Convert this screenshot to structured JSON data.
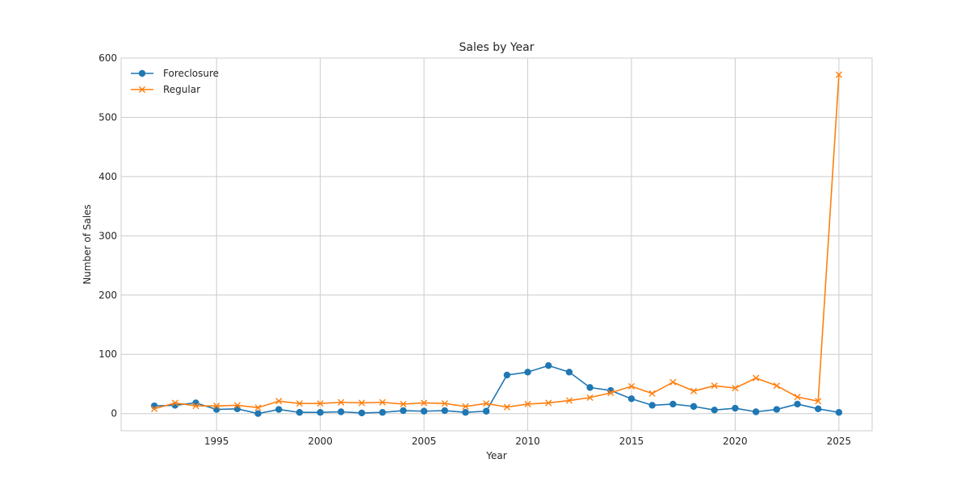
{
  "chart_data": {
    "type": "line",
    "title": "Sales by Year",
    "xlabel": "Year",
    "ylabel": "Number of Sales",
    "xlim": [
      1990.4,
      2026.6
    ],
    "ylim": [
      -29,
      600
    ],
    "xticks": [
      1995,
      2000,
      2005,
      2010,
      2015,
      2020,
      2025
    ],
    "yticks": [
      0,
      100,
      200,
      300,
      400,
      500,
      600
    ],
    "grid": true,
    "legend_position": "top-left",
    "x": [
      1992,
      1993,
      1994,
      1995,
      1996,
      1997,
      1998,
      1999,
      2000,
      2001,
      2002,
      2003,
      2004,
      2005,
      2006,
      2007,
      2008,
      2009,
      2010,
      2011,
      2012,
      2013,
      2014,
      2015,
      2016,
      2017,
      2018,
      2019,
      2020,
      2021,
      2022,
      2023,
      2024,
      2025
    ],
    "series": [
      {
        "name": "Foreclosure",
        "color": "#1f77b4",
        "marker": "circle",
        "values": [
          13,
          14,
          18,
          7,
          8,
          0,
          7,
          2,
          2,
          3,
          1,
          2,
          5,
          4,
          5,
          2,
          4,
          65,
          70,
          81,
          70,
          44,
          39,
          25,
          14,
          16,
          12,
          6,
          9,
          3,
          7,
          16,
          8,
          2
        ]
      },
      {
        "name": "Regular",
        "color": "#ff7f0e",
        "marker": "x",
        "values": [
          8,
          18,
          13,
          13,
          14,
          10,
          21,
          17,
          17,
          19,
          18,
          19,
          16,
          18,
          17,
          12,
          17,
          11,
          16,
          18,
          22,
          27,
          35,
          46,
          34,
          53,
          38,
          47,
          43,
          60,
          47,
          28,
          21,
          572
        ]
      }
    ]
  }
}
